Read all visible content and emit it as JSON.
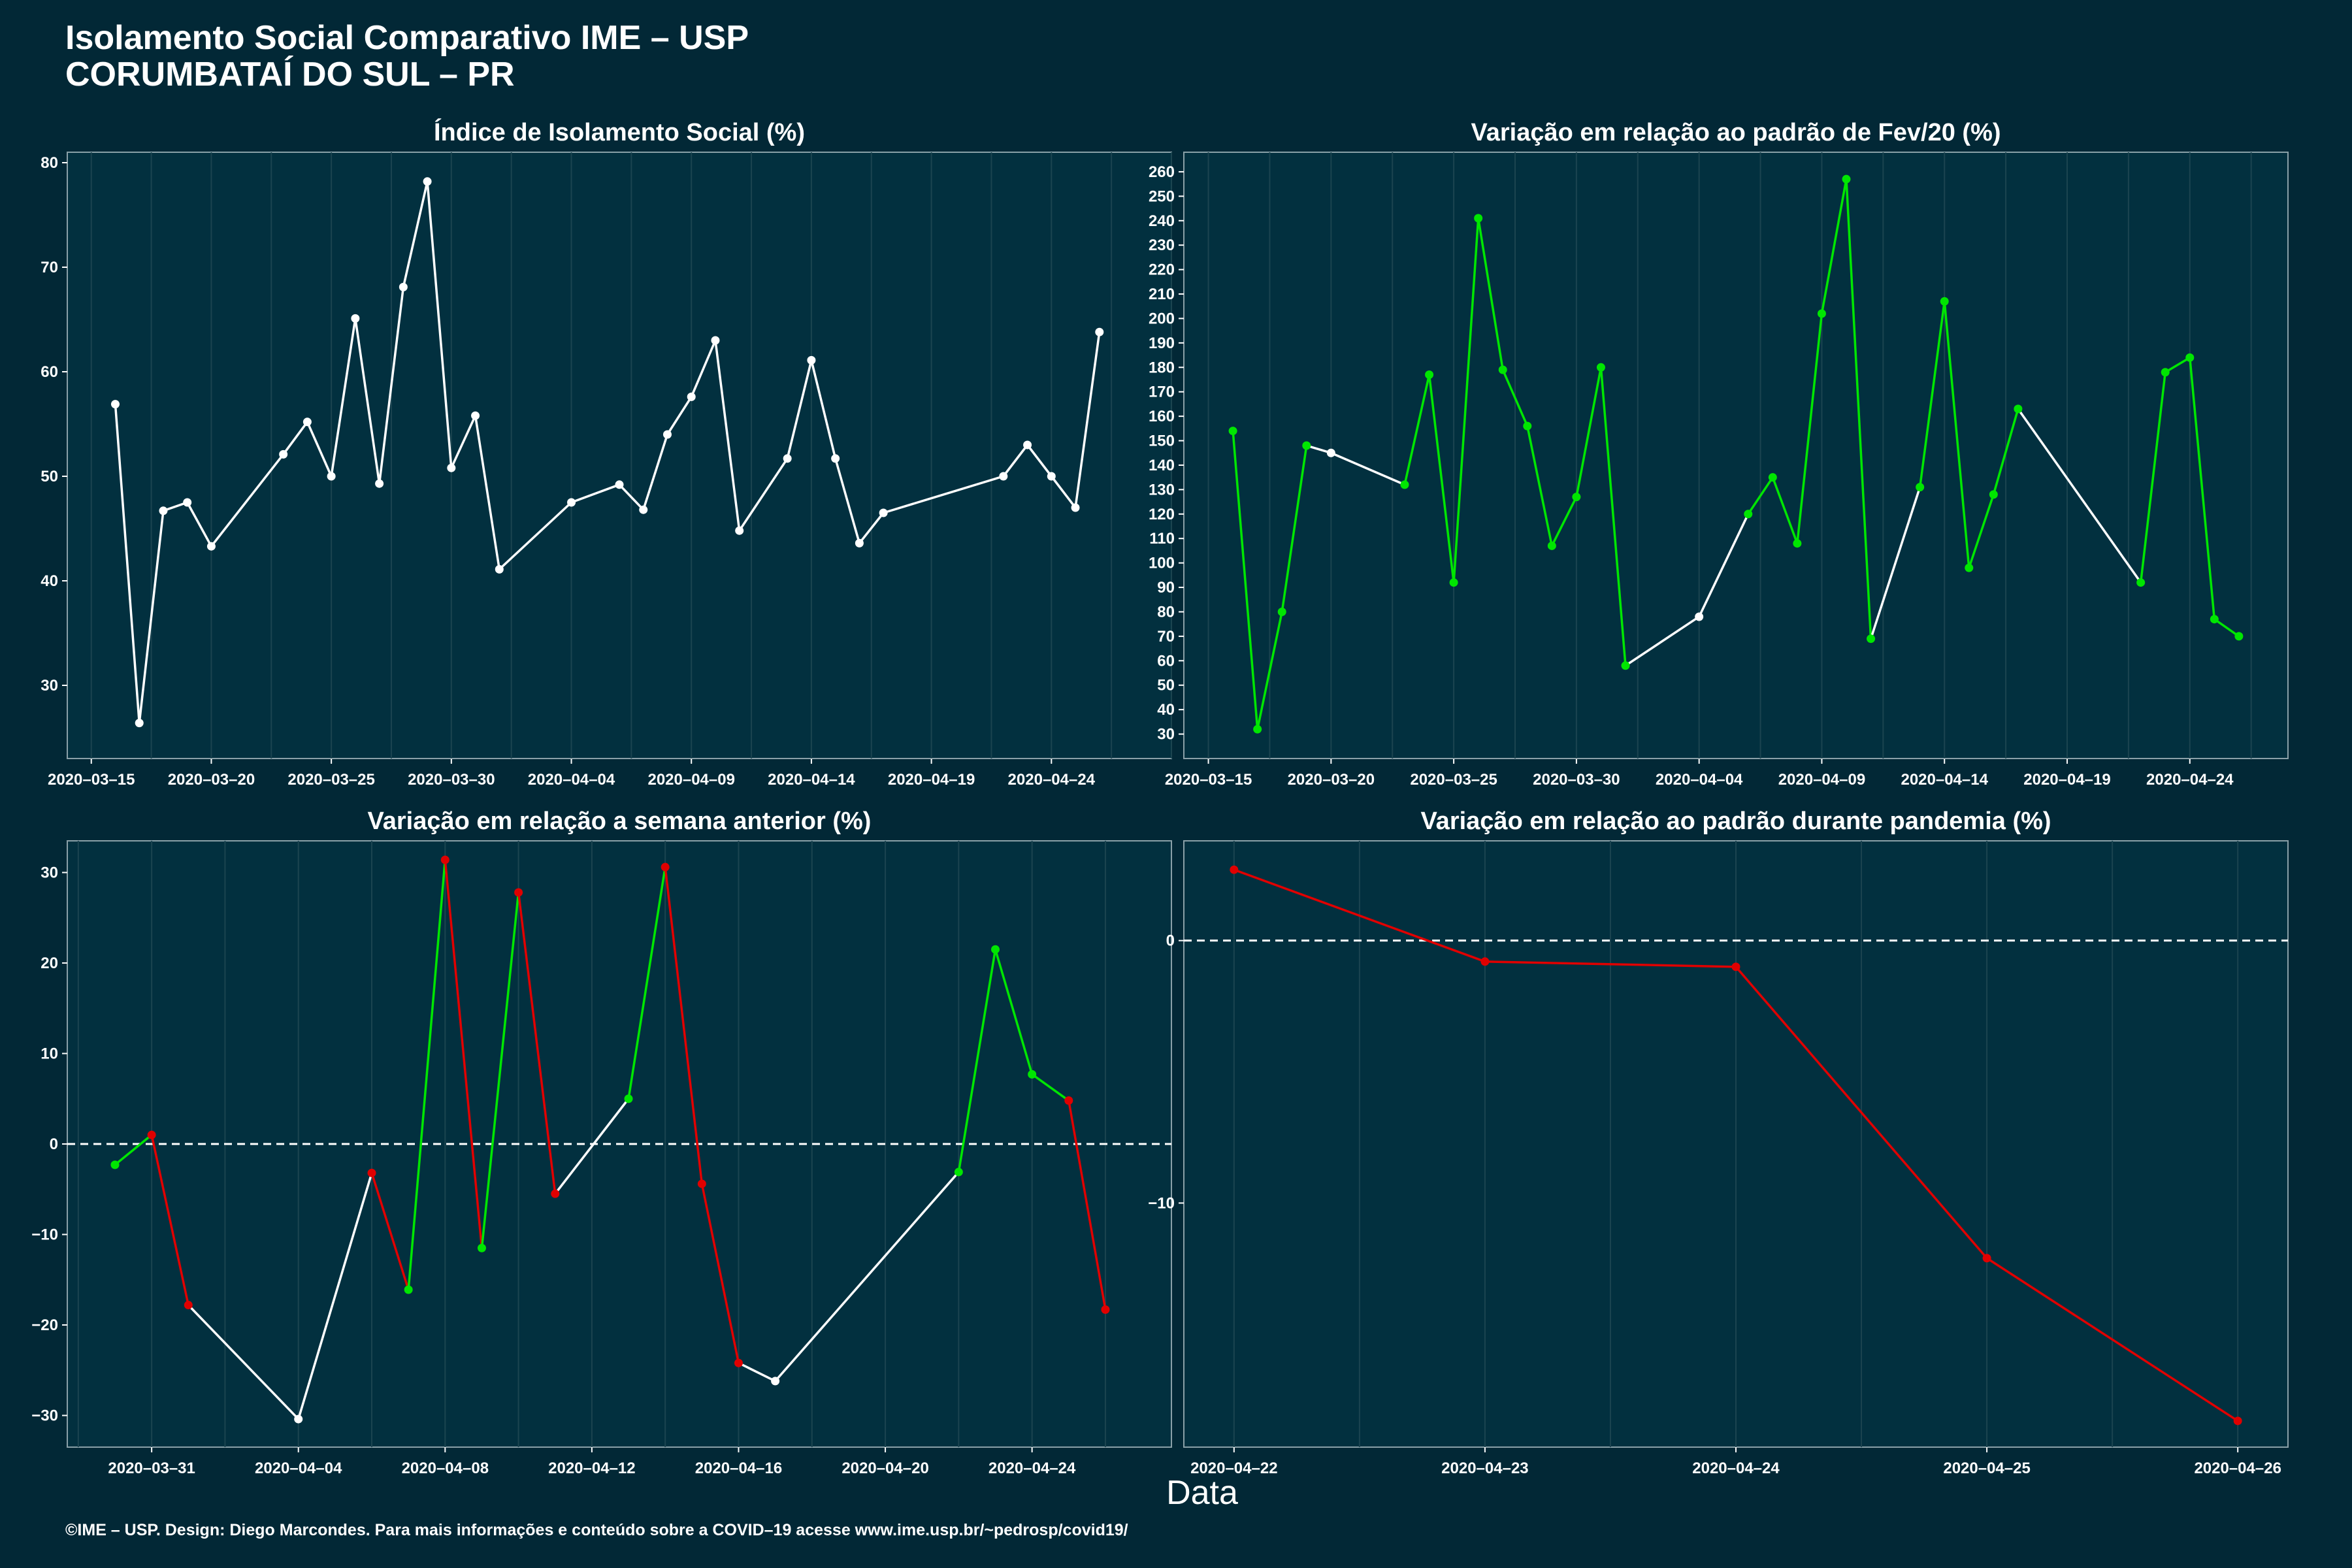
{
  "header": {
    "title_line1": "Isolamento Social Comparativo IME – USP",
    "title_line2": "CORUMBATAÍ DO SUL – PR"
  },
  "footer": {
    "caption": "©IME – USP. Design: Diego Marcondes. Para mais informações e conteúdo sobre a COVID–19 acesse www.ime.usp.br/~pedrosp/covid19/",
    "xlabel": "Data"
  },
  "colors": {
    "background": "#022836",
    "panel": "#02303f",
    "white": "#ffffff",
    "green": "#00e600",
    "red": "#e00000"
  },
  "chart_data": [
    {
      "type": "line",
      "title": "Índice de Isolamento Social (%)",
      "xlabel": "",
      "ylabel": "",
      "ylim": [
        23,
        81
      ],
      "yticks": [
        30,
        40,
        50,
        60,
        70,
        80
      ],
      "xlim": [
        "2020-03-14",
        "2020-04-29"
      ],
      "xticks": [
        "2020-03-15",
        "2020-03-20",
        "2020-03-25",
        "2020-03-30",
        "2020-04-04",
        "2020-04-09",
        "2020-04-14",
        "2020-04-19",
        "2020-04-24"
      ],
      "grid": true,
      "series": [
        {
          "points": [
            [
              "2020-03-16",
              56.9
            ],
            [
              "2020-03-17",
              26.4
            ],
            [
              "2020-03-18",
              46.7
            ],
            [
              "2020-03-19",
              47.5
            ],
            [
              "2020-03-20",
              43.3
            ],
            [
              "2020-03-23",
              52.1
            ],
            [
              "2020-03-24",
              55.2
            ],
            [
              "2020-03-25",
              50.0
            ],
            [
              "2020-03-26",
              65.1
            ],
            [
              "2020-03-27",
              49.3
            ],
            [
              "2020-03-28",
              68.1
            ],
            [
              "2020-03-29",
              78.2
            ],
            [
              "2020-03-30",
              50.8
            ],
            [
              "2020-03-31",
              55.8
            ],
            [
              "2020-04-01",
              41.1
            ],
            [
              "2020-04-04",
              47.5
            ],
            [
              "2020-04-06",
              49.2
            ],
            [
              "2020-04-07",
              46.8
            ],
            [
              "2020-04-08",
              54.0
            ],
            [
              "2020-04-09",
              57.6
            ],
            [
              "2020-04-10",
              63.0
            ],
            [
              "2020-04-11",
              44.8
            ],
            [
              "2020-04-13",
              51.7
            ],
            [
              "2020-04-14",
              61.1
            ],
            [
              "2020-04-15",
              51.7
            ],
            [
              "2020-04-16",
              43.6
            ],
            [
              "2020-04-17",
              46.5
            ],
            [
              "2020-04-22",
              50.0
            ],
            [
              "2020-04-23",
              53.0
            ],
            [
              "2020-04-24",
              50.0
            ],
            [
              "2020-04-25",
              47.0
            ],
            [
              "2020-04-26",
              63.8
            ]
          ],
          "segment_colors": "white"
        }
      ]
    },
    {
      "type": "line",
      "title": "Variação em relação ao padrão de Fev/20 (%)",
      "xlabel": "",
      "ylabel": "",
      "ylim": [
        20,
        268
      ],
      "yticks": [
        30,
        40,
        50,
        60,
        70,
        80,
        90,
        100,
        110,
        120,
        130,
        140,
        150,
        160,
        170,
        180,
        190,
        200,
        210,
        220,
        230,
        240,
        250,
        260
      ],
      "xlim": [
        "2020-03-14",
        "2020-04-28"
      ],
      "xticks": [
        "2020-03-15",
        "2020-03-20",
        "2020-03-25",
        "2020-03-30",
        "2020-04-04",
        "2020-04-09",
        "2020-04-14",
        "2020-04-19",
        "2020-04-24"
      ],
      "grid": true,
      "series": [
        {
          "points": [
            [
              "2020-03-16",
              154
            ],
            [
              "2020-03-17",
              32
            ],
            [
              "2020-03-18",
              80
            ],
            [
              "2020-03-19",
              148
            ],
            [
              "2020-03-20",
              145
            ],
            [
              "2020-03-23",
              132
            ],
            [
              "2020-03-24",
              177
            ],
            [
              "2020-03-25",
              92
            ],
            [
              "2020-03-26",
              241
            ],
            [
              "2020-03-27",
              179
            ],
            [
              "2020-03-28",
              156
            ],
            [
              "2020-03-29",
              107
            ],
            [
              "2020-03-30",
              127
            ],
            [
              "2020-03-31",
              180
            ],
            [
              "2020-04-01",
              58
            ],
            [
              "2020-04-04",
              78
            ],
            [
              "2020-04-06",
              120
            ],
            [
              "2020-04-07",
              135
            ],
            [
              "2020-04-08",
              108
            ],
            [
              "2020-04-09",
              202
            ],
            [
              "2020-04-10",
              257
            ],
            [
              "2020-04-11",
              69
            ],
            [
              "2020-04-13",
              131
            ],
            [
              "2020-04-14",
              207
            ],
            [
              "2020-04-15",
              98
            ],
            [
              "2020-04-16",
              128
            ],
            [
              "2020-04-17",
              163
            ],
            [
              "2020-04-22",
              92
            ],
            [
              "2020-04-23",
              178
            ],
            [
              "2020-04-24",
              184
            ],
            [
              "2020-04-25",
              77
            ],
            [
              "2020-04-26",
              70
            ]
          ],
          "segment_colors": [
            "green",
            "green",
            "green",
            "white",
            "white",
            "green",
            "green",
            "green",
            "green",
            "green",
            "green",
            "green",
            "green",
            "green",
            "white",
            "white",
            "green",
            "green",
            "green",
            "green",
            "green",
            "white",
            "green",
            "green",
            "green",
            "green",
            "white",
            "green",
            "green",
            "green",
            "green"
          ]
        }
      ]
    },
    {
      "type": "line",
      "title": "Variação em relação a semana anterior (%)",
      "xlabel": "",
      "ylabel": "",
      "ylim": [
        -33.5,
        33.5
      ],
      "yticks": [
        -30,
        -20,
        -10,
        0,
        10,
        20,
        30
      ],
      "xlim": [
        "2020-03-28.7",
        "2020-04-27.8"
      ],
      "xticks": [
        "2020-03-31",
        "2020-04-04",
        "2020-04-08",
        "2020-04-12",
        "2020-04-16",
        "2020-04-20",
        "2020-04-24"
      ],
      "grid": true,
      "reference_line": 0,
      "series": [
        {
          "points": [
            [
              "2020-03-30",
              -2.3
            ],
            [
              "2020-03-31",
              1.0
            ],
            [
              "2020-04-01",
              -17.8
            ],
            [
              "2020-04-04",
              -30.4
            ],
            [
              "2020-04-06",
              -3.2
            ],
            [
              "2020-04-07",
              -16.1
            ],
            [
              "2020-04-08",
              31.4
            ],
            [
              "2020-04-09",
              -11.5
            ],
            [
              "2020-04-10",
              27.8
            ],
            [
              "2020-04-11",
              -5.5
            ],
            [
              "2020-04-13",
              5.0
            ],
            [
              "2020-04-14",
              30.6
            ],
            [
              "2020-04-15",
              -4.4
            ],
            [
              "2020-04-16",
              -24.2
            ],
            [
              "2020-04-17",
              -26.2
            ],
            [
              "2020-04-22",
              -3.1
            ],
            [
              "2020-04-23",
              21.5
            ],
            [
              "2020-04-24",
              7.7
            ],
            [
              "2020-04-25",
              4.8
            ],
            [
              "2020-04-26",
              -18.3
            ]
          ],
          "segment_colors": [
            "green",
            "red",
            "white",
            "white",
            "red",
            "green",
            "red",
            "green",
            "red",
            "white",
            "green",
            "red",
            "red",
            "white",
            "white",
            "green",
            "green",
            "green",
            "red"
          ]
        }
      ]
    },
    {
      "type": "line",
      "title": "Variação em relação ao padrão durante pandemia (%)",
      "xlabel": "",
      "ylabel": "",
      "ylim": [
        -19.3,
        3.8
      ],
      "yticks": [
        -10,
        0
      ],
      "xlim": [
        "2020-04-21.8",
        "2020-04-26.2"
      ],
      "xticks": [
        "2020-04-22",
        "2020-04-23",
        "2020-04-24",
        "2020-04-25",
        "2020-04-26"
      ],
      "grid": true,
      "reference_line": 0,
      "series": [
        {
          "points": [
            [
              "2020-04-22",
              2.7
            ],
            [
              "2020-04-23",
              -0.8
            ],
            [
              "2020-04-24",
              -1.0
            ],
            [
              "2020-04-25",
              -12.1
            ],
            [
              "2020-04-26",
              -18.3
            ]
          ],
          "segment_colors": "red"
        }
      ]
    }
  ]
}
